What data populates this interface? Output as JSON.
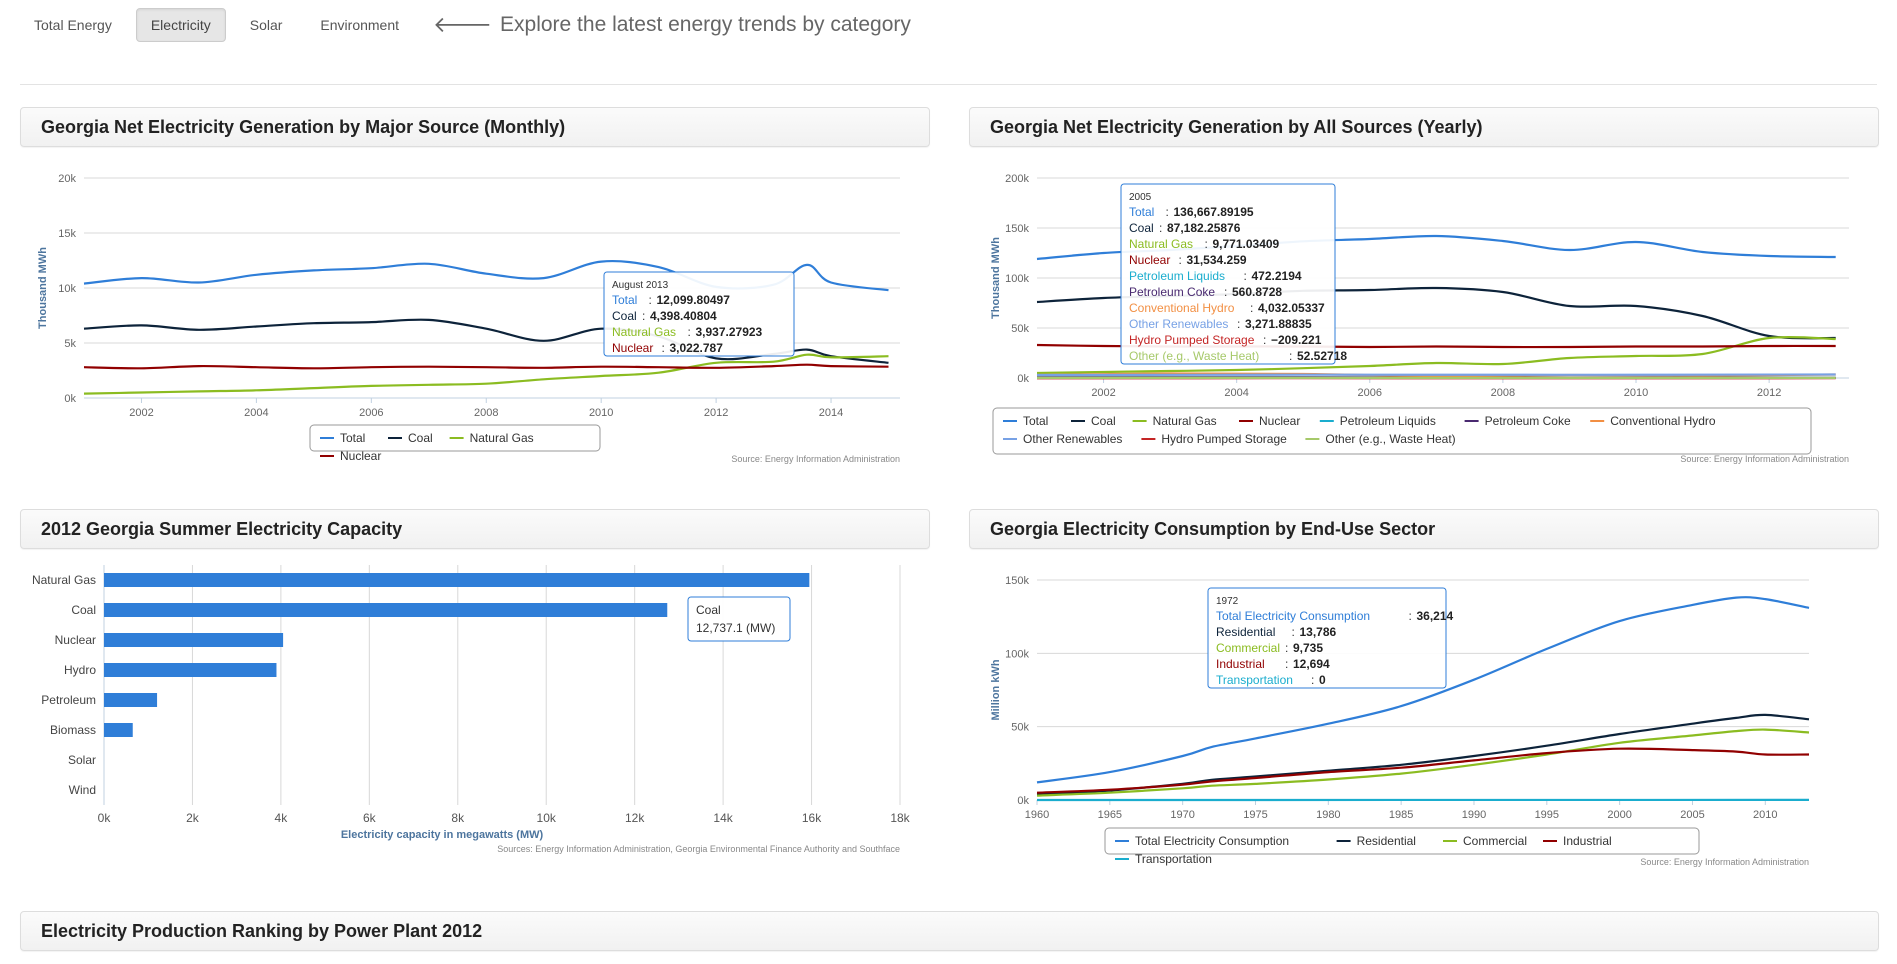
{
  "nav": {
    "tabs": [
      "Total Energy",
      "Electricity",
      "Solar",
      "Environment"
    ],
    "active_index": 1,
    "headline": "Explore the latest energy trends by category"
  },
  "panels": {
    "monthly_title": "Georgia Net Electricity Generation by Major Source (Monthly)",
    "yearly_title": "Georgia Net Electricity Generation by All Sources (Yearly)",
    "capacity_title": "2012 Georgia Summer Electricity Capacity",
    "consumption_title": "Georgia Electricity Consumption by End-Use Sector",
    "ranking_title": "Electricity Production Ranking by Power Plant 2012"
  },
  "chart_data": [
    {
      "id": "monthly",
      "type": "line",
      "ylabel": "Thousand MWh",
      "yticks": [
        "0k",
        "5k",
        "10k",
        "15k",
        "20k"
      ],
      "ylim": [
        0,
        20000
      ],
      "xticks": [
        "2002",
        "2004",
        "2006",
        "2008",
        "2010",
        "2012",
        "2014"
      ],
      "xlim": [
        2001,
        2015.2
      ],
      "series": [
        {
          "name": "Total",
          "color": "#2f7ed8",
          "x": [
            2001,
            2002,
            2003,
            2004,
            2005,
            2006,
            2007,
            2008,
            2009,
            2010,
            2011,
            2012,
            2013,
            2013.58,
            2014,
            2015
          ],
          "y": [
            10400,
            10900,
            10500,
            11200,
            11600,
            11800,
            12200,
            11300,
            10900,
            12400,
            11900,
            10100,
            10300,
            12099.8,
            10500,
            9800
          ]
        },
        {
          "name": "Coal",
          "color": "#0d233a",
          "x": [
            2001,
            2002,
            2003,
            2004,
            2005,
            2006,
            2007,
            2008,
            2009,
            2010,
            2011,
            2012,
            2013,
            2013.58,
            2014,
            2015
          ],
          "y": [
            6300,
            6600,
            6200,
            6500,
            6800,
            6900,
            7100,
            6300,
            5200,
            6300,
            5600,
            3600,
            4000,
            4398.4,
            3800,
            3200
          ]
        },
        {
          "name": "Natural Gas",
          "color": "#8bbc21",
          "x": [
            2001,
            2002,
            2003,
            2004,
            2005,
            2006,
            2007,
            2008,
            2009,
            2010,
            2011,
            2012,
            2013,
            2013.58,
            2014,
            2015
          ],
          "y": [
            400,
            500,
            600,
            700,
            900,
            1100,
            1200,
            1300,
            1700,
            2000,
            2300,
            3200,
            3300,
            3937.3,
            3700,
            3800
          ]
        },
        {
          "name": "Nuclear",
          "color": "#910000",
          "x": [
            2001,
            2002,
            2003,
            2004,
            2005,
            2006,
            2007,
            2008,
            2009,
            2010,
            2011,
            2012,
            2013,
            2013.58,
            2014,
            2015
          ],
          "y": [
            2800,
            2700,
            2900,
            2800,
            2700,
            2800,
            2850,
            2800,
            2750,
            2850,
            2800,
            2750,
            2900,
            3022.8,
            2900,
            2850
          ]
        }
      ],
      "legend": [
        "Total",
        "Coal",
        "Natural Gas",
        "Nuclear"
      ],
      "source": "Source: Energy Information Administration",
      "tooltip": {
        "header": "August 2013",
        "rows": [
          {
            "label": "Total",
            "value": "12,099.80497",
            "color": "#2f7ed8"
          },
          {
            "label": "Coal",
            "value": "4,398.40804",
            "color": "#0d233a"
          },
          {
            "label": "Natural Gas",
            "value": "3,937.27923",
            "color": "#8bbc21"
          },
          {
            "label": "Nuclear",
            "value": "3,022.787",
            "color": "#910000"
          }
        ]
      }
    },
    {
      "id": "yearly",
      "type": "line",
      "ylabel": "Thousand MWh",
      "yticks": [
        "0k",
        "50k",
        "100k",
        "150k",
        "200k"
      ],
      "ylim": [
        0,
        200000
      ],
      "xticks": [
        "2002",
        "2004",
        "2006",
        "2008",
        "2010",
        "2012"
      ],
      "xlim": [
        2001,
        2013.2
      ],
      "series": [
        {
          "name": "Total",
          "color": "#2f7ed8",
          "x": [
            2001,
            2002,
            2003,
            2004,
            2005,
            2006,
            2007,
            2008,
            2009,
            2010,
            2011,
            2012,
            2013
          ],
          "y": [
            119000,
            125000,
            128000,
            132000,
            136668,
            139000,
            142000,
            137000,
            128000,
            136000,
            126000,
            122000,
            121000
          ]
        },
        {
          "name": "Coal",
          "color": "#0d233a",
          "x": [
            2001,
            2002,
            2003,
            2004,
            2005,
            2006,
            2007,
            2008,
            2009,
            2010,
            2011,
            2012,
            2013
          ],
          "y": [
            76000,
            80000,
            82000,
            84000,
            87182,
            88000,
            90000,
            86000,
            72000,
            72000,
            62000,
            42000,
            40000
          ]
        },
        {
          "name": "Natural Gas",
          "color": "#8bbc21",
          "x": [
            2001,
            2002,
            2003,
            2004,
            2005,
            2006,
            2007,
            2008,
            2009,
            2010,
            2011,
            2012,
            2013
          ],
          "y": [
            5000,
            6000,
            7000,
            8000,
            9771,
            12000,
            15000,
            14000,
            20000,
            22000,
            24000,
            40000,
            39000
          ]
        },
        {
          "name": "Nuclear",
          "color": "#910000",
          "x": [
            2001,
            2002,
            2003,
            2004,
            2005,
            2006,
            2007,
            2008,
            2009,
            2010,
            2011,
            2012,
            2013
          ],
          "y": [
            33000,
            32000,
            31500,
            31500,
            31534,
            31000,
            31500,
            31000,
            31000,
            31500,
            31500,
            32000,
            32000
          ]
        },
        {
          "name": "Petroleum Liquids",
          "color": "#1aadce",
          "x": [
            2001,
            2005,
            2009,
            2013
          ],
          "y": [
            500,
            472,
            300,
            200
          ]
        },
        {
          "name": "Petroleum Coke",
          "color": "#492970",
          "x": [
            2001,
            2005,
            2009,
            2013
          ],
          "y": [
            600,
            561,
            300,
            100
          ]
        },
        {
          "name": "Conventional Hydro",
          "color": "#f28f43",
          "x": [
            2001,
            2003,
            2005,
            2007,
            2009,
            2011,
            2013
          ],
          "y": [
            3000,
            4500,
            4032,
            2000,
            3000,
            2500,
            3500
          ]
        },
        {
          "name": "Other Renewables",
          "color": "#77a1e5",
          "x": [
            2001,
            2005,
            2009,
            2013
          ],
          "y": [
            3000,
            3272,
            3200,
            3500
          ]
        },
        {
          "name": "Hydro Pumped Storage",
          "color": "#c42525",
          "x": [
            2001,
            2005,
            2009,
            2013
          ],
          "y": [
            -300,
            -209,
            -300,
            -200
          ]
        },
        {
          "name": "Other (e.g., Waste Heat)",
          "color": "#a6c96a",
          "x": [
            2001,
            2005,
            2009,
            2013
          ],
          "y": [
            60,
            52.5,
            50,
            50
          ]
        }
      ],
      "legend": [
        "Total",
        "Coal",
        "Natural Gas",
        "Nuclear",
        "Petroleum Liquids",
        "Petroleum Coke",
        "Conventional Hydro",
        "Other Renewables",
        "Hydro Pumped Storage",
        "Other (e.g., Waste Heat)"
      ],
      "source": "Source: Energy Information Administration",
      "tooltip": {
        "header": "2005",
        "rows": [
          {
            "label": "Total",
            "value": "136,667.89195",
            "color": "#2f7ed8"
          },
          {
            "label": "Coal",
            "value": "87,182.25876",
            "color": "#0d233a"
          },
          {
            "label": "Natural Gas",
            "value": "9,771.03409",
            "color": "#8bbc21"
          },
          {
            "label": "Nuclear",
            "value": "31,534.259",
            "color": "#910000"
          },
          {
            "label": "Petroleum Liquids",
            "value": "472.2194",
            "color": "#1aadce"
          },
          {
            "label": "Petroleum Coke",
            "value": "560.8728",
            "color": "#492970"
          },
          {
            "label": "Conventional Hydro",
            "value": "4,032.05337",
            "color": "#f28f43"
          },
          {
            "label": "Other Renewables",
            "value": "3,271.88835",
            "color": "#77a1e5"
          },
          {
            "label": "Hydro Pumped Storage",
            "value": "−209.221",
            "color": "#c42525"
          },
          {
            "label": "Other (e.g., Waste Heat)",
            "value": "52.52718",
            "color": "#a6c96a"
          }
        ]
      }
    },
    {
      "id": "capacity",
      "type": "bar",
      "categories": [
        "Natural Gas",
        "Coal",
        "Nuclear",
        "Hydro",
        "Petroleum",
        "Biomass",
        "Solar",
        "Wind"
      ],
      "values": [
        15950,
        12737.1,
        4050,
        3900,
        1200,
        650,
        0,
        0
      ],
      "xlim": [
        0,
        18000
      ],
      "xticks": [
        "0k",
        "2k",
        "4k",
        "6k",
        "8k",
        "10k",
        "12k",
        "14k",
        "16k",
        "18k"
      ],
      "xlabel": "Electricity capacity in megawatts (MW)",
      "color": "#2f7ed8",
      "source": "Sources: Energy Information Administration, Georgia Environmental Finance Authority and Southface",
      "tooltip": {
        "header": "Coal",
        "value": "12,737.1 (MW)"
      }
    },
    {
      "id": "consumption",
      "type": "line",
      "ylabel": "Million kWh",
      "yticks": [
        "0k",
        "50k",
        "100k",
        "150k"
      ],
      "ylim": [
        0,
        150000
      ],
      "xticks": [
        "1960",
        "1965",
        "1970",
        "1975",
        "1980",
        "1985",
        "1990",
        "1995",
        "2000",
        "2005",
        "2010"
      ],
      "xlim": [
        1960,
        2013
      ],
      "series": [
        {
          "name": "Total Electricity Consumption",
          "color": "#2f7ed8",
          "x": [
            1960,
            1965,
            1970,
            1972,
            1975,
            1980,
            1985,
            1990,
            1995,
            2000,
            2005,
            2008,
            2010,
            2013
          ],
          "y": [
            12000,
            19000,
            30000,
            36214,
            42000,
            52000,
            64000,
            82000,
            103000,
            122000,
            133000,
            138000,
            137000,
            131000
          ]
        },
        {
          "name": "Residential",
          "color": "#0d233a",
          "x": [
            1960,
            1965,
            1970,
            1972,
            1975,
            1980,
            1985,
            1990,
            1995,
            2000,
            2005,
            2008,
            2010,
            2013
          ],
          "y": [
            4000,
            6500,
            11000,
            13786,
            16000,
            20000,
            24000,
            30000,
            37000,
            45000,
            52000,
            56000,
            58000,
            55000
          ]
        },
        {
          "name": "Commercial",
          "color": "#8bbc21",
          "x": [
            1960,
            1965,
            1970,
            1972,
            1975,
            1980,
            1985,
            1990,
            1995,
            2000,
            2005,
            2008,
            2010,
            2013
          ],
          "y": [
            3000,
            5000,
            8000,
            9735,
            11000,
            14000,
            18000,
            24000,
            31000,
            39000,
            44000,
            47000,
            48000,
            46000
          ]
        },
        {
          "name": "Industrial",
          "color": "#910000",
          "x": [
            1960,
            1965,
            1970,
            1972,
            1975,
            1980,
            1985,
            1990,
            1995,
            2000,
            2005,
            2008,
            2010,
            2013
          ],
          "y": [
            5000,
            7000,
            10500,
            12694,
            15000,
            19000,
            22000,
            27000,
            32000,
            35000,
            34000,
            33000,
            31000,
            31000
          ]
        },
        {
          "name": "Transportation",
          "color": "#1aadce",
          "x": [
            1960,
            2013
          ],
          "y": [
            0,
            100
          ]
        }
      ],
      "legend": [
        "Total Electricity Consumption",
        "Residential",
        "Commercial",
        "Industrial",
        "Transportation"
      ],
      "source": "Source: Energy Information Administration",
      "tooltip": {
        "header": "1972",
        "rows": [
          {
            "label": "Total Electricity Consumption",
            "value": "36,214",
            "color": "#2f7ed8"
          },
          {
            "label": "Residential",
            "value": "13,786",
            "color": "#0d233a"
          },
          {
            "label": "Commercial",
            "value": "9,735",
            "color": "#8bbc21"
          },
          {
            "label": "Industrial",
            "value": "12,694",
            "color": "#910000"
          },
          {
            "label": "Transportation",
            "value": "0",
            "color": "#1aadce"
          }
        ]
      }
    }
  ]
}
